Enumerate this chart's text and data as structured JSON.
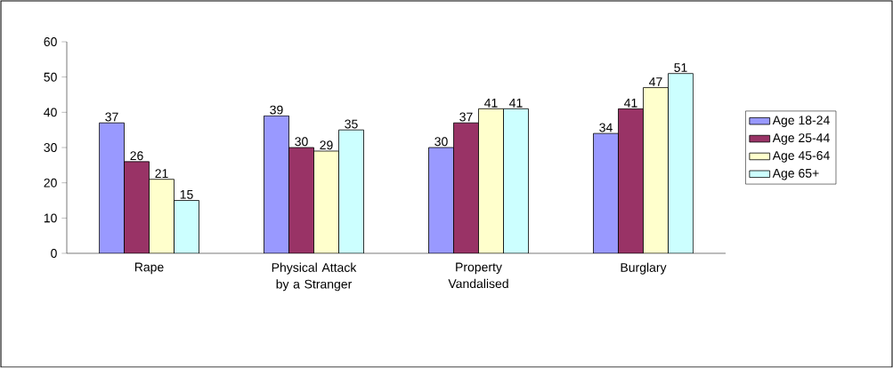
{
  "chart_data": {
    "type": "bar",
    "categories": [
      "Rape",
      "Physical Attack by a Stranger",
      "Property Vandalised",
      "Burglary"
    ],
    "series": [
      {
        "name": "Age 18-24",
        "color": "#9999ff",
        "values": [
          37,
          39,
          30,
          34
        ]
      },
      {
        "name": "Age 25-44",
        "color": "#993366",
        "values": [
          26,
          30,
          37,
          41
        ]
      },
      {
        "name": "Age 45-64",
        "color": "#ffffcc",
        "values": [
          21,
          29,
          41,
          47
        ]
      },
      {
        "name": "Age 65+",
        "color": "#ccffff",
        "values": [
          15,
          35,
          41,
          51
        ]
      }
    ],
    "ylim": [
      0,
      60
    ],
    "yticks": [
      0,
      10,
      20,
      30,
      40,
      50,
      60
    ],
    "data_labels": true,
    "legend": "right"
  }
}
